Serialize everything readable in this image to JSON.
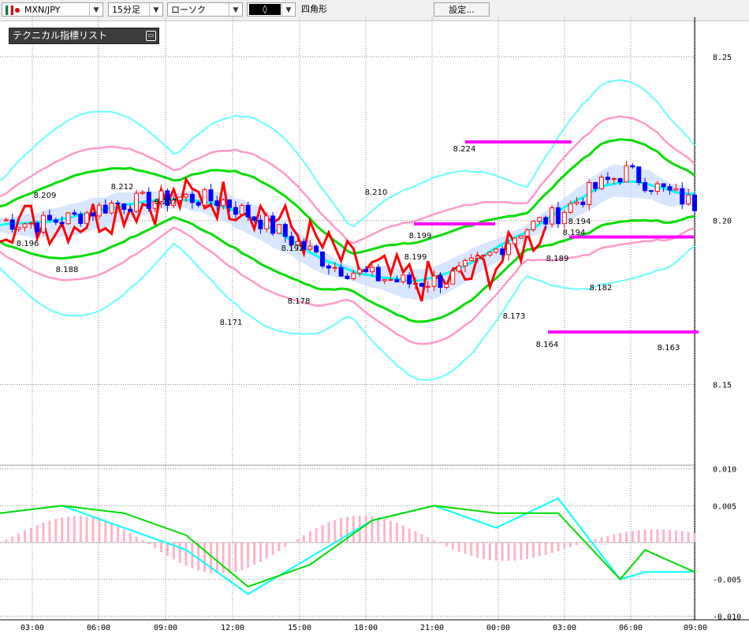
{
  "toolbar": {
    "symbol": "MXN/JPY",
    "timeframe": "15分足",
    "chart_style": "ローソク",
    "draw_tool": "四角形",
    "settings_label": "設定..."
  },
  "indicator_panel": {
    "title": "テクニカル指標リスト"
  },
  "colors": {
    "up_candle": "#ff0000",
    "down_candle": "#0000ff",
    "bb_outer": "#66ffff",
    "bb_inner": "#ff99cc",
    "ma": "#00dd00",
    "cyan_line": "#00ffff",
    "red_line": "#ff0000",
    "ichimoku_cloud_a": "#c8dcff",
    "ichimoku_cloud_b": "#ffc8dc",
    "hline": "#ff00ff",
    "macd_hist": "#ffb4c8"
  },
  "chart_data": [
    {
      "type": "candlestick",
      "symbol": "MXN/JPY",
      "timeframe": "15分足",
      "x_tick_labels": [
        "03:00",
        "06:00",
        "09:00",
        "12:00",
        "15:00",
        "18:00",
        "21:00",
        "00:00",
        "03:00",
        "06:00",
        "09:00"
      ],
      "y_tick_labels": [
        "8.25",
        "8.20",
        "8.15"
      ],
      "ylim": [
        8.147,
        8.262
      ],
      "annotations": [
        "8.209",
        "8.196",
        "8.188",
        "8.212",
        "8.207",
        "8.171",
        "8.192",
        "8.178",
        "8.210",
        "8.199",
        "8.199",
        "8.224",
        "8.173",
        "8.164",
        "8.189",
        "8.194",
        "8.194",
        "8.182",
        "8.163"
      ],
      "horizontal_levels": [
        8.224,
        8.199,
        8.195,
        8.166
      ],
      "series": [
        {
          "x": [
            0,
            6,
            12,
            18,
            24,
            30,
            36,
            42,
            48,
            54,
            60,
            66,
            72,
            78,
            84,
            90,
            96,
            101,
            106,
            112
          ],
          "values": [
            8.2,
            8.199,
            8.201,
            8.205,
            8.206,
            8.207,
            8.206,
            8.2,
            8.193,
            8.186,
            8.183,
            8.181,
            8.182,
            8.188,
            8.197,
            8.202,
            8.21,
            8.215,
            8.21,
            8.205
          ]
        }
      ]
    },
    {
      "type": "line",
      "name": "MACD",
      "y_tick_labels": [
        "0.010",
        "0.005",
        "-0.005",
        "-0.010"
      ],
      "ylim": [
        -0.0105,
        0.0105
      ],
      "x": [
        0,
        10,
        20,
        30,
        40,
        50,
        60,
        70,
        80,
        90,
        100,
        104,
        112
      ],
      "series": [
        {
          "values": [
            0.004,
            0.005,
            0.002,
            -0.001,
            -0.007,
            -0.002,
            0.003,
            0.005,
            0.002,
            0.006,
            -0.005,
            -0.004,
            -0.004
          ]
        },
        {
          "values": [
            0.004,
            0.005,
            0.004,
            0.001,
            -0.006,
            -0.003,
            0.003,
            0.005,
            0.004,
            0.004,
            -0.005,
            -0.001,
            -0.004
          ]
        }
      ]
    }
  ]
}
